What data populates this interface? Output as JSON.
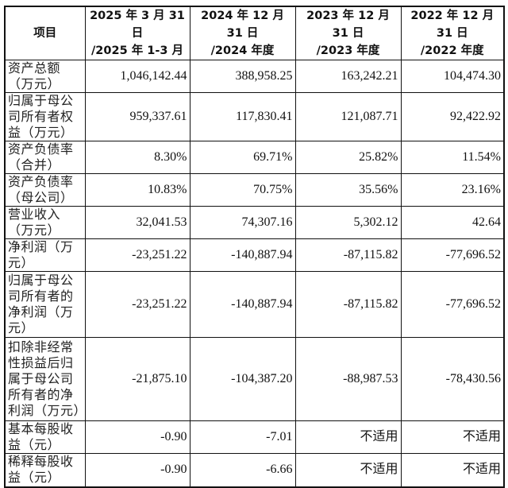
{
  "table": {
    "headers": [
      "项目",
      "2025年3月31日/2025年1-3月",
      "2024年12月31日/2024年度",
      "2023年12月31日/2023年度",
      "2022年12月31日/2022年度"
    ],
    "header_lines": [
      [
        "项目",
        ""
      ],
      [
        "2025 年 3 月 31 日",
        "/2025 年 1-3 月"
      ],
      [
        "2024 年 12 月 31 日",
        "/2024 年度"
      ],
      [
        "2023 年 12 月 31 日",
        "/2023 年度"
      ],
      [
        "2022 年 12 月 31 日",
        "/2022 年度"
      ]
    ],
    "rows": [
      {
        "label": "资产总额（万元）",
        "values": [
          "1,046,142.44",
          "388,958.25",
          "163,242.21",
          "104,474.30"
        ]
      },
      {
        "label": "归属于母公司所有者权益（万元）",
        "values": [
          "959,337.61",
          "117,830.41",
          "121,087.71",
          "92,422.92"
        ]
      },
      {
        "label": "资产负债率（合并）",
        "values": [
          "8.30%",
          "69.71%",
          "25.82%",
          "11.54%"
        ]
      },
      {
        "label": "资产负债率（母公司）",
        "values": [
          "10.83%",
          "70.75%",
          "35.56%",
          "23.16%"
        ]
      },
      {
        "label": "营业收入（万元）",
        "values": [
          "32,041.53",
          "74,307.16",
          "5,302.12",
          "42.64"
        ]
      },
      {
        "label": "净利润（万元）",
        "values": [
          "-23,251.22",
          "-140,887.94",
          "-87,115.82",
          "-77,696.52"
        ]
      },
      {
        "label": "归属于母公司所有者的净利润（万元）",
        "values": [
          "-23,251.22",
          "-140,887.94",
          "-87,115.82",
          "-77,696.52"
        ]
      },
      {
        "label": "扣除非经常性损益后归属于母公司所有者的净利润（万元）",
        "values": [
          "-21,875.10",
          "-104,387.20",
          "-88,987.53",
          "-78,430.56"
        ]
      },
      {
        "label": "基本每股收益（元）",
        "values": [
          "-0.90",
          "-7.01",
          "不适用",
          "不适用"
        ]
      },
      {
        "label": "稀释每股收益（元）",
        "values": [
          "-0.90",
          "-6.66",
          "不适用",
          "不适用"
        ]
      }
    ]
  }
}
